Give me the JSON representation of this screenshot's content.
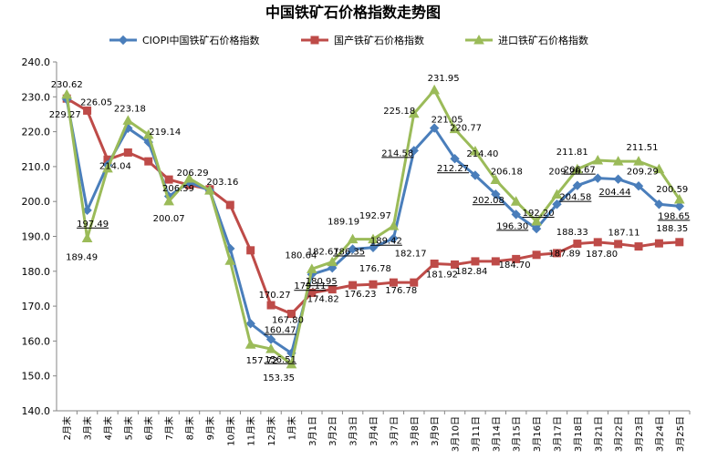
{
  "chart_data": {
    "type": "line",
    "title": "中国铁矿石价格指数走势图",
    "xlabel": "",
    "ylabel": "",
    "ylim": [
      140,
      240
    ],
    "yticks": [
      "140.0",
      "150.0",
      "160.0",
      "170.0",
      "180.0",
      "190.0",
      "200.0",
      "210.0",
      "220.0",
      "230.0",
      "240.0"
    ],
    "grid": false,
    "legend_position": "top",
    "categories": [
      "2月末",
      "3月末",
      "4月末",
      "5月末",
      "6月末",
      "7月末",
      "8月末",
      "9月末",
      "10月末",
      "11月末",
      "12月末",
      "1月末",
      "3月1日",
      "3月2日",
      "3月3日",
      "3月4日",
      "3月7日",
      "3月8日",
      "3月9日",
      "3月10日",
      "3月11日",
      "3月14日",
      "3月15日",
      "3月16日",
      "3月17日",
      "3月18日",
      "3月21日",
      "3月22日",
      "3月23日",
      "3月24日",
      "3月25日"
    ],
    "series": [
      {
        "name": "CIOPI中国铁矿石价格指数",
        "color": "#4A7EBB",
        "marker": "diamond",
        "values": [
          229.27,
          197.49,
          210.5,
          221.0,
          217.0,
          201.5,
          205.5,
          203.16,
          186.5,
          165.0,
          160.47,
          156.51,
          179.11,
          180.95,
          186.35,
          186.8,
          189.42,
          214.58,
          221.05,
          212.27,
          207.5,
          202.08,
          196.3,
          192.2,
          199.2,
          204.58,
          206.67,
          206.4,
          204.44,
          199.2,
          198.65
        ]
      },
      {
        "name": "国产铁矿石价格指数",
        "color": "#BE4B48",
        "marker": "square",
        "values": [
          229.5,
          226.05,
          212.0,
          214.04,
          211.5,
          206.29,
          204.7,
          203.5,
          199.0,
          186.0,
          170.27,
          167.8,
          173.8,
          174.82,
          176.0,
          176.23,
          176.78,
          176.78,
          182.17,
          181.92,
          182.84,
          182.84,
          183.5,
          184.7,
          185.2,
          187.89,
          188.33,
          187.8,
          187.11,
          188.0,
          188.35
        ]
      },
      {
        "name": "进口铁矿石价格指数",
        "color": "#9BBB59",
        "marker": "triangle",
        "values": [
          230.62,
          189.49,
          209.5,
          223.18,
          219.14,
          200.07,
          206.59,
          203.16,
          183.0,
          159.0,
          157.72,
          153.35,
          180.64,
          182.67,
          189.19,
          189.19,
          192.97,
          225.18,
          231.95,
          220.77,
          214.4,
          206.18,
          200.0,
          194.3,
          202.0,
          209.26,
          211.81,
          211.5,
          211.51,
          209.29,
          200.59
        ]
      }
    ],
    "data_labels": [
      {
        "text": "230.62",
        "series": 2,
        "index": 0
      },
      {
        "text": "229.27",
        "series": 0,
        "index": 0
      },
      {
        "text": "226.05",
        "series": 1,
        "index": 1
      },
      {
        "text": "197.49",
        "series": 0,
        "index": 1
      },
      {
        "text": "189.49",
        "series": 2,
        "index": 1
      },
      {
        "text": "214.04",
        "series": 1,
        "index": 3
      },
      {
        "text": "223.18",
        "series": 2,
        "index": 3
      },
      {
        "text": "219.14",
        "series": 2,
        "index": 4
      },
      {
        "text": "206.29",
        "series": 1,
        "index": 5
      },
      {
        "text": "206.59",
        "series": 2,
        "index": 6
      },
      {
        "text": "200.07",
        "series": 2,
        "index": 5
      },
      {
        "text": "203.16",
        "series": 0,
        "index": 7
      },
      {
        "text": "170.27",
        "series": 1,
        "index": 10
      },
      {
        "text": "167.80",
        "series": 1,
        "index": 11
      },
      {
        "text": "160.47",
        "series": 0,
        "index": 10
      },
      {
        "text": "157.72",
        "series": 2,
        "index": 10
      },
      {
        "text": "156.51",
        "series": 0,
        "index": 11
      },
      {
        "text": "153.35",
        "series": 2,
        "index": 11
      },
      {
        "text": "180.64",
        "series": 2,
        "index": 12
      },
      {
        "text": "179.11",
        "series": 0,
        "index": 12
      },
      {
        "text": "174.82",
        "series": 1,
        "index": 13
      },
      {
        "text": "182.67",
        "series": 2,
        "index": 13
      },
      {
        "text": "180.95",
        "series": 0,
        "index": 13
      },
      {
        "text": "186.35",
        "series": 0,
        "index": 14
      },
      {
        "text": "176.23",
        "series": 1,
        "index": 15
      },
      {
        "text": "189.19",
        "series": 2,
        "index": 14
      },
      {
        "text": "176.78",
        "series": 1,
        "index": 16
      },
      {
        "text": "189.42",
        "series": 0,
        "index": 16
      },
      {
        "text": "192.97",
        "series": 2,
        "index": 16
      },
      {
        "text": "176.78",
        "series": 1,
        "index": 17
      },
      {
        "text": "225.18",
        "series": 2,
        "index": 17
      },
      {
        "text": "214.58",
        "series": 0,
        "index": 17
      },
      {
        "text": "231.95",
        "series": 2,
        "index": 18
      },
      {
        "text": "221.05",
        "series": 0,
        "index": 18
      },
      {
        "text": "182.17",
        "series": 1,
        "index": 18
      },
      {
        "text": "181.92",
        "series": 1,
        "index": 19
      },
      {
        "text": "212.27",
        "series": 0,
        "index": 19
      },
      {
        "text": "220.77",
        "series": 2,
        "index": 19
      },
      {
        "text": "214.40",
        "series": 2,
        "index": 20
      },
      {
        "text": "182.84",
        "series": 1,
        "index": 20
      },
      {
        "text": "202.08",
        "series": 0,
        "index": 21
      },
      {
        "text": "206.18",
        "series": 2,
        "index": 21
      },
      {
        "text": "196.30",
        "series": 0,
        "index": 22
      },
      {
        "text": "184.70",
        "series": 1,
        "index": 23
      },
      {
        "text": "192.20",
        "series": 0,
        "index": 23
      },
      {
        "text": "209.26",
        "series": 2,
        "index": 25
      },
      {
        "text": "187.89",
        "series": 1,
        "index": 25
      },
      {
        "text": "204.58",
        "series": 0,
        "index": 25
      },
      {
        "text": "188.33",
        "series": 1,
        "index": 26
      },
      {
        "text": "211.81",
        "series": 2,
        "index": 26
      },
      {
        "text": "206.67",
        "series": 0,
        "index": 26
      },
      {
        "text": "187.80",
        "series": 1,
        "index": 27
      },
      {
        "text": "204.44",
        "series": 0,
        "index": 28
      },
      {
        "text": "211.51",
        "series": 2,
        "index": 28
      },
      {
        "text": "187.11",
        "series": 1,
        "index": 28
      },
      {
        "text": "209.29",
        "series": 2,
        "index": 29
      },
      {
        "text": "200.59",
        "series": 2,
        "index": 30
      },
      {
        "text": "198.65",
        "series": 0,
        "index": 30
      },
      {
        "text": "188.35",
        "series": 1,
        "index": 30
      }
    ]
  }
}
